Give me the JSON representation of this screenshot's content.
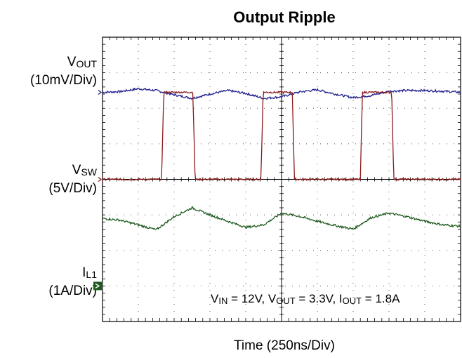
{
  "chart_data": {
    "type": "line",
    "title": "Output Ripple",
    "xlabel": "Time (250ns/Div)",
    "x_divisions": 10,
    "y_divisions": 8,
    "grid": true,
    "conditions": {
      "vin": {
        "main": "V",
        "sub": "IN",
        "rest": " = 12V, "
      },
      "vout": {
        "main": "V",
        "sub": "OUT",
        "rest": " = 3.3V, "
      },
      "iout": {
        "main": "I",
        "sub": "OUT",
        "rest": " = 1.8A"
      }
    },
    "series": [
      {
        "name": "VOUT",
        "label": {
          "main": "V",
          "sub": "OUT",
          "scale": "(10mV/Div)"
        },
        "color": "#1f1f8f",
        "ground_div": 6.45,
        "x_div": [
          0,
          0.5,
          1.0,
          1.5,
          2.0,
          2.5,
          3.0,
          3.5,
          4.0,
          4.5,
          5.0,
          5.5,
          6.0,
          6.5,
          7.0,
          7.5,
          8.0,
          8.5,
          9.0,
          9.5,
          10.0
        ],
        "y_div": [
          6.45,
          6.47,
          6.55,
          6.5,
          6.38,
          6.28,
          6.4,
          6.5,
          6.42,
          6.28,
          6.32,
          6.46,
          6.52,
          6.4,
          6.3,
          6.36,
          6.48,
          6.5,
          6.5,
          6.48,
          6.45
        ]
      },
      {
        "name": "VSW",
        "label": {
          "main": "V",
          "sub": "SW",
          "scale": "(5V/Div)"
        },
        "color": "#8b1a1a",
        "ground_div": 4.0,
        "x_div": [
          0,
          3.3,
          3.42,
          5.05,
          5.17,
          8.85,
          8.97,
          10.6,
          10.72,
          14.4,
          14.52,
          16.15,
          16.27,
          18.5
        ],
        "y_div": [
          4.0,
          4.0,
          6.45,
          6.45,
          4.0,
          4.0,
          6.45,
          6.45,
          4.0,
          4.0,
          6.45,
          6.45,
          4.0,
          4.0
        ],
        "x_scale_note": "x_div for VSW are in fine units of 0.5 div"
      },
      {
        "name": "IL1",
        "label": {
          "main": "I",
          "sub": "L1",
          "scale": "(1A/Div)"
        },
        "color": "#1e5a1e",
        "ground_div": 1.0,
        "x_div": [
          0,
          0.5,
          1.0,
          1.5,
          2.0,
          2.5,
          3.0,
          3.5,
          4.0,
          4.5,
          5.0,
          5.5,
          6.0,
          6.5,
          7.0,
          7.5,
          8.0,
          8.5,
          9.0,
          9.5,
          10.0
        ],
        "y_div": [
          2.9,
          2.85,
          2.72,
          2.58,
          2.95,
          3.2,
          3.0,
          2.82,
          2.65,
          2.72,
          3.05,
          2.96,
          2.82,
          2.7,
          2.6,
          2.92,
          3.05,
          2.95,
          2.82,
          2.72,
          2.68
        ]
      }
    ]
  }
}
